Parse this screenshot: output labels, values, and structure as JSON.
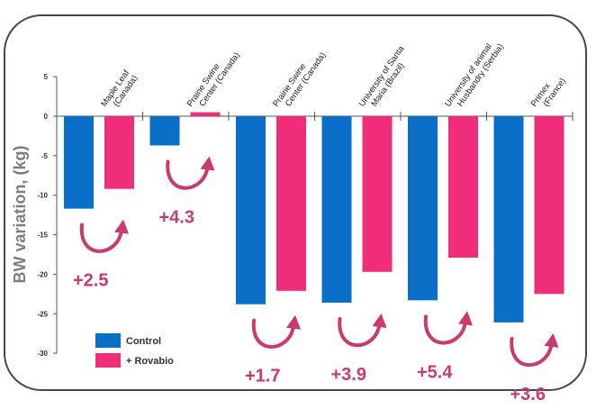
{
  "chart_data": {
    "type": "bar",
    "ylabel": "BW variation, (kg)",
    "ylim": [
      -30,
      5
    ],
    "yticks": [
      5,
      0,
      -5,
      -10,
      -15,
      -20,
      -25,
      -30
    ],
    "categories": [
      [
        "Maple Leaf",
        "(Canada)"
      ],
      [
        "Prairie Swine",
        "Center (Canada)"
      ],
      [
        "Prairie Swine",
        "Center (Canada)"
      ],
      [
        "University of Santa",
        "Maria (Brazil)"
      ],
      [
        "University of animal",
        "Husbandry (Serbia)"
      ],
      [
        "Primex",
        "(France)"
      ]
    ],
    "series": [
      {
        "name": "Control",
        "color": "#0a6fc7",
        "values": [
          -11.7,
          -3.7,
          -23.8,
          -23.6,
          -23.3,
          -26.1
        ]
      },
      {
        "name": "+ Rovabio",
        "color": "#ef2d78",
        "values": [
          -9.2,
          0.5,
          -22.1,
          -19.7,
          -17.9,
          -22.5
        ]
      }
    ],
    "annotations": [
      "+2.5",
      "+4.3",
      "+1.7",
      "+3.9",
      "+5.4",
      "+3.6"
    ],
    "arrow_color": "#c93a6e",
    "legend_position": "bottom-left"
  }
}
